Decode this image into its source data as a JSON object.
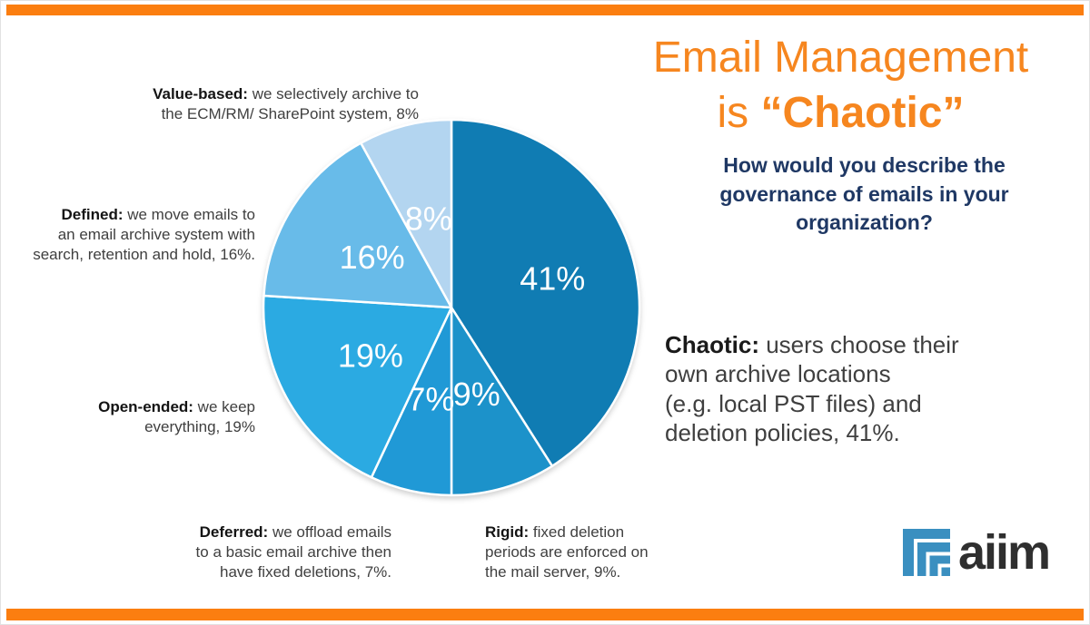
{
  "page": {
    "accent_orange": "#FB7E10",
    "title_orange": "#F6861F",
    "subtitle_navy": "#1F3864",
    "title_line1": "Email Management",
    "title_line2_prefix": "is ",
    "title_line2_emph": "“Chaotic”",
    "subtitle": "How would you describe the\ngovernance of emails in your\norganization?"
  },
  "highlight": {
    "term": "Chaotic:",
    "text": " users choose their\nown archive locations\n(e.g. local PST files) and\ndeletion policies, 41%."
  },
  "callouts": [
    {
      "id": "value-based",
      "term": "Value-based:",
      "text": " we selectively archive to\nthe ECM/RM/ SharePoint system, 8%"
    },
    {
      "id": "defined",
      "term": "Defined:",
      "text": " we move emails to\nan email archive system with\nsearch, retention and hold, 16%."
    },
    {
      "id": "open-ended",
      "term": "Open-ended:",
      "text": " we keep\neverything, 19%"
    },
    {
      "id": "deferred",
      "term": "Deferred:",
      "text": " we offload emails\nto a basic email archive then\nhave fixed deletions, 7%."
    },
    {
      "id": "rigid",
      "term": "Rigid:",
      "text": " fixed deletion\nperiods are enforced on\nthe mail server, 9%."
    }
  ],
  "chart_data": {
    "type": "pie",
    "title": "How would you describe the governance of emails in your organization?",
    "categories": [
      "Chaotic",
      "Rigid",
      "Deferred",
      "Open-ended",
      "Defined",
      "Value-based"
    ],
    "values": [
      41,
      9,
      7,
      19,
      16,
      8
    ],
    "labels": [
      "41%",
      "9%",
      "7%",
      "19%",
      "16%",
      "8%"
    ],
    "colors": [
      "#107CB3",
      "#1C92CA",
      "#2099D6",
      "#2BAAE2",
      "#68BBE9",
      "#B3D5F0"
    ],
    "start_angle_deg": 0,
    "direction": "clockwise",
    "label_color": "#FFFFFF",
    "label_radius": [
      0.56,
      0.48,
      0.5,
      0.5,
      0.5,
      0.49
    ],
    "slice_border_color": "#FFFFFF",
    "legend_position": "none"
  },
  "logo": {
    "text": "aiim",
    "icon_color": "#3A8FC0",
    "text_color": "#2F2F2F"
  }
}
